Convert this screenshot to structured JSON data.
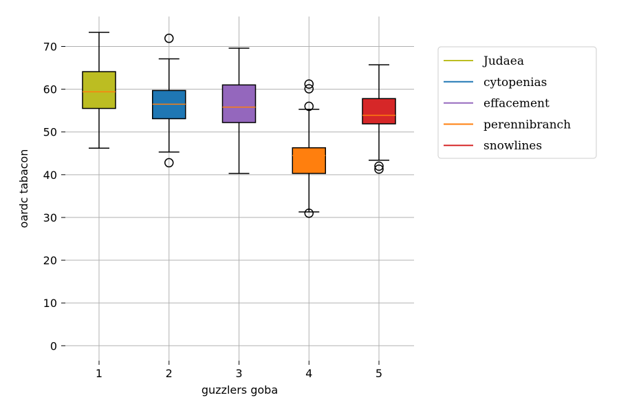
{
  "chart_data": {
    "type": "boxplot",
    "xlabel": "guzzlers goba",
    "ylabel": "oardc tabacon",
    "categories": [
      "1",
      "2",
      "3",
      "4",
      "5"
    ],
    "ylim": [
      -3.5,
      77
    ],
    "yticks": [
      0,
      10,
      20,
      30,
      40,
      50,
      60,
      70
    ],
    "grid": true,
    "legend_position": "right",
    "series": [
      {
        "name": "Judaea",
        "color": "#bcbd22",
        "whisker_low": 46.2,
        "q1": 55.5,
        "median": 59.4,
        "q3": 64.1,
        "whisker_high": 73.3,
        "outliers": []
      },
      {
        "name": "cytopenias",
        "color": "#1f77b4",
        "whisker_low": 45.3,
        "q1": 53.1,
        "median": 56.5,
        "q3": 59.7,
        "whisker_high": 67.1,
        "outliers": [
          42.8,
          71.9
        ]
      },
      {
        "name": "effacement",
        "color": "#9467bd",
        "whisker_low": 40.3,
        "q1": 52.2,
        "median": 55.8,
        "q3": 61.0,
        "whisker_high": 69.6,
        "outliers": []
      },
      {
        "name": "perennibranch",
        "color": "#ff7f0e",
        "whisker_low": 31.3,
        "q1": 40.3,
        "median": 44.5,
        "q3": 46.3,
        "whisker_high": 55.3,
        "outliers": [
          31.0,
          56.0,
          60.1,
          61.2
        ]
      },
      {
        "name": "snowlines",
        "color": "#d62728",
        "whisker_low": 43.4,
        "q1": 51.9,
        "median": 53.9,
        "q3": 57.8,
        "whisker_high": 65.7,
        "outliers": [
          41.3,
          42.0
        ]
      }
    ],
    "median_line_color": "#ff7f0e"
  }
}
